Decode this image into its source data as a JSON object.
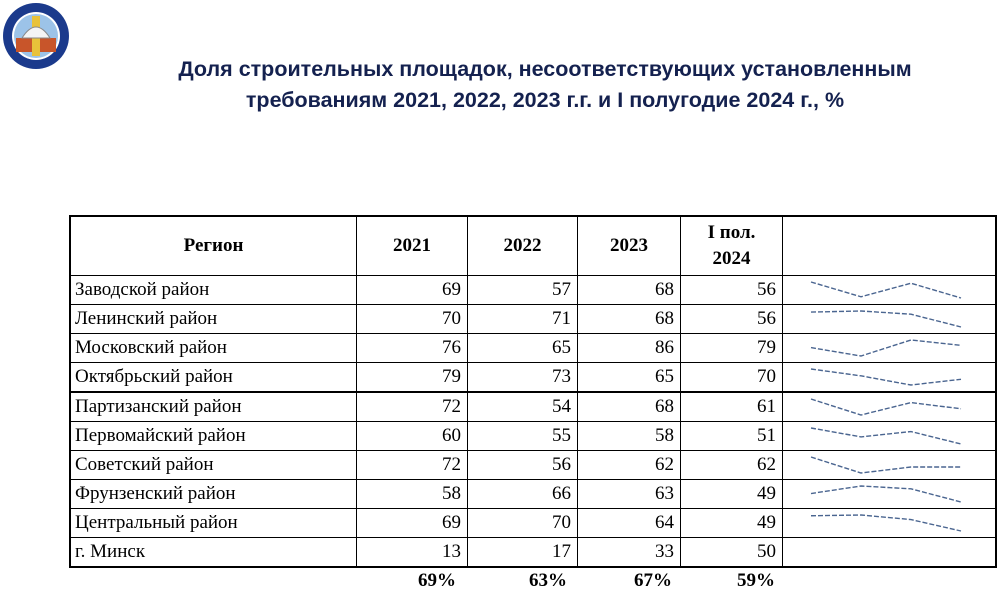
{
  "logo": {
    "icon": "construction-inspection-seal-icon",
    "colors": [
      "#1b3a8c",
      "#ffffff",
      "#c8552a",
      "#e8c23a"
    ]
  },
  "title": {
    "line1": "Доля строительных площадок, несоответствующих установленным",
    "line2": "требованиям 2021, 2022, 2023  г.г.  и I полугодие 2024 г., %"
  },
  "table": {
    "headers": [
      "Регион",
      "2021",
      "2022",
      "2023",
      "I пол. 2024",
      ""
    ],
    "rows": [
      {
        "region": "Заводской район",
        "values": [
          69,
          57,
          68,
          56
        ]
      },
      {
        "region": "Ленинский район",
        "values": [
          70,
          71,
          68,
          56
        ]
      },
      {
        "region": "Московский район",
        "values": [
          76,
          65,
          86,
          79
        ]
      },
      {
        "region": "Октябрьский район",
        "values": [
          79,
          73,
          65,
          70
        ]
      },
      {
        "region": "Партизанский район",
        "values": [
          72,
          54,
          68,
          61
        ]
      },
      {
        "region": "Первомайский район",
        "values": [
          60,
          55,
          58,
          51
        ]
      },
      {
        "region": "Советский район",
        "values": [
          72,
          56,
          62,
          62
        ]
      },
      {
        "region": "Фрунзенский район",
        "values": [
          58,
          66,
          63,
          49
        ]
      },
      {
        "region": "Центральный район",
        "values": [
          69,
          70,
          64,
          49
        ]
      },
      {
        "region": "г. Минск",
        "values": [
          13,
          17,
          33,
          50
        ],
        "sparkline": false
      }
    ],
    "totals": [
      "69%",
      "63%",
      "67%",
      "59%"
    ],
    "sparkline_color": "#4a6590"
  }
}
